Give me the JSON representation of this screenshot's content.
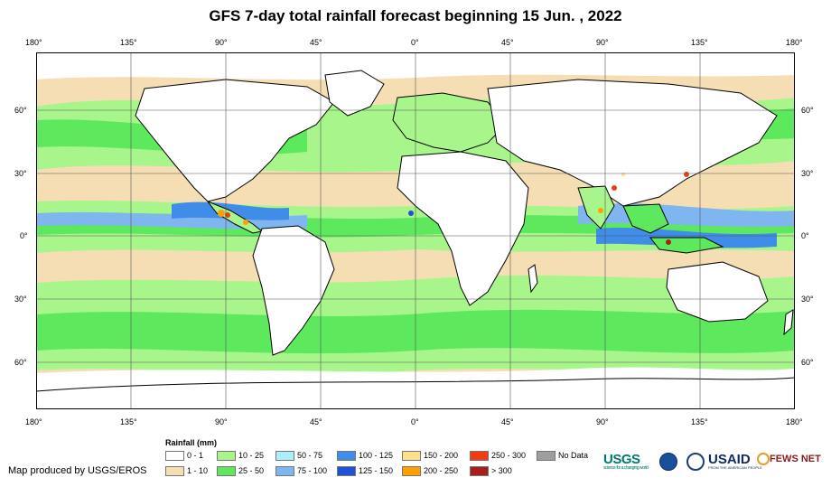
{
  "title": "GFS 7-day total rainfall forecast beginning 15 Jun. , 2022",
  "lon_labels": [
    "180°",
    "135°",
    "90°",
    "45°",
    "0°",
    "45°",
    "90°",
    "135°",
    "180°"
  ],
  "lat_labels": [
    "60°",
    "30°",
    "0°",
    "30°",
    "60°"
  ],
  "legend": {
    "title": "Rainfall (mm)",
    "items": [
      {
        "label": "0 - 1",
        "color": "#ffffff"
      },
      {
        "label": "1 - 10",
        "color": "#f5deb3"
      },
      {
        "label": "10 - 25",
        "color": "#a8f58c"
      },
      {
        "label": "25 - 50",
        "color": "#5ee85e"
      },
      {
        "label": "50 - 75",
        "color": "#aeeefa"
      },
      {
        "label": "75 - 100",
        "color": "#7fb6f0"
      },
      {
        "label": "100 - 125",
        "color": "#3f8de8"
      },
      {
        "label": "125 - 150",
        "color": "#1f50d8"
      },
      {
        "label": "150 - 200",
        "color": "#ffe08a"
      },
      {
        "label": "200 - 250",
        "color": "#ffa000"
      },
      {
        "label": "250 - 300",
        "color": "#f03c10"
      },
      {
        "label": "> 300",
        "color": "#a81e1e"
      },
      {
        "label": "No Data",
        "color": "#9e9e9e"
      }
    ]
  },
  "credit": "Map produced by USGS/EROS",
  "logos": {
    "usgs": "USGS",
    "usgs_tagline": "science for a changing world",
    "usaid": "USAID",
    "usaid_tagline": "FROM THE AMERICAN PEOPLE",
    "fewsnet": "FEWS NET"
  },
  "colors": {
    "land_outline": "#000000",
    "grid": "#555555"
  }
}
